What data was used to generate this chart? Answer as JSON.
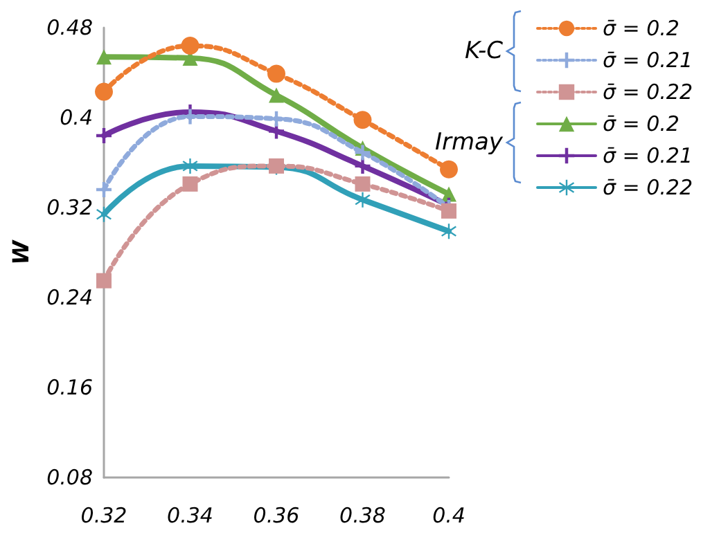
{
  "chart_data": {
    "type": "line",
    "ylabel": "W",
    "x": [
      0.32,
      0.34,
      0.36,
      0.38,
      0.4
    ],
    "series": [
      {
        "name": "σ̄ = 0.2",
        "color": "#ed7d31",
        "values": [
          0.423,
          0.464,
          0.439,
          0.398,
          0.354
        ],
        "marker": "circle",
        "line_style": "dotted"
      },
      {
        "name": "σ̄ = 0.21",
        "color": "#8faadc",
        "values": [
          0.336,
          0.401,
          0.399,
          0.369,
          0.32
        ],
        "marker": "cross",
        "line_style": "dotted"
      },
      {
        "name": "σ̄ = 0.22",
        "color": "#d09494",
        "values": [
          0.255,
          0.341,
          0.357,
          0.341,
          0.317
        ],
        "marker": "square",
        "line_style": "dotted"
      },
      {
        "name": "σ̄ = 0.2",
        "color": "#70ad47",
        "values": [
          0.454,
          0.453,
          0.42,
          0.373,
          0.332
        ],
        "marker": "triangle",
        "line_style": "solid"
      },
      {
        "name": "σ̄ = 0.21",
        "color": "#7030a0",
        "values": [
          0.384,
          0.405,
          0.388,
          0.357,
          0.322
        ],
        "marker": "cross",
        "line_style": "solid"
      },
      {
        "name": "σ̄ = 0.22",
        "color": "#31a0b8",
        "values": [
          0.314,
          0.357,
          0.356,
          0.327,
          0.299
        ],
        "marker": "star",
        "line_style": "solid"
      }
    ],
    "annotations": [
      "K-C",
      "Irmay"
    ],
    "xlim": [
      0.32,
      0.4
    ],
    "xticks": [
      0.32,
      0.34,
      0.36,
      0.38,
      0.4
    ],
    "ylim": [
      0.08,
      0.48
    ],
    "yticks": [
      0.08,
      0.16,
      0.24,
      0.32,
      0.4,
      0.48
    ],
    "grid": false,
    "legend": "right"
  }
}
